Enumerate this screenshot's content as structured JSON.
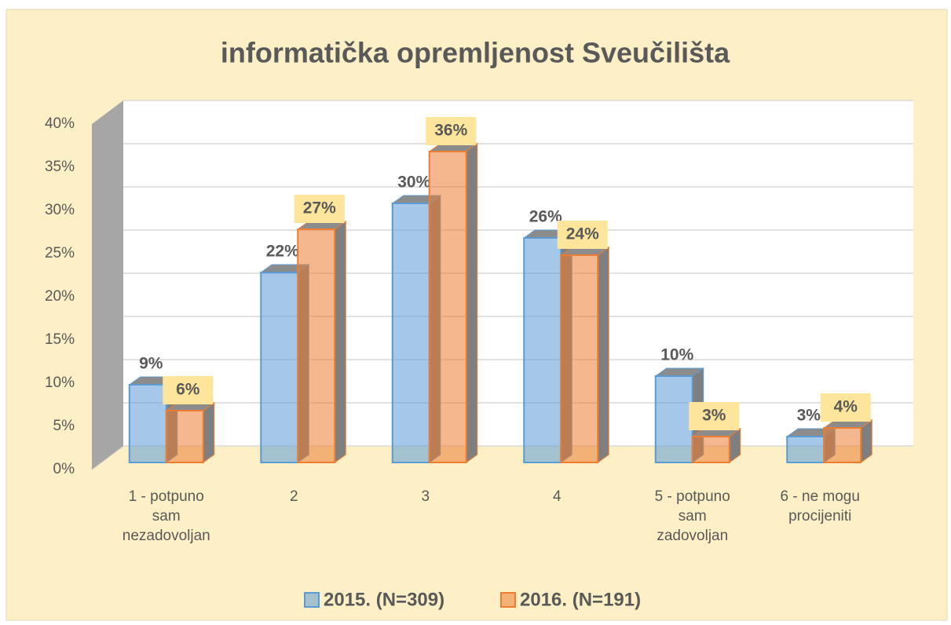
{
  "chart_data": {
    "type": "bar",
    "title": "informatička opremljenost Sveučilišta",
    "categories": [
      "1 - potpuno sam nezadovoljan",
      "2",
      "3",
      "4",
      "5 - potpuno sam zadovoljan",
      "6 - ne mogu procijeniti"
    ],
    "series": [
      {
        "name": "2015. (N=309)",
        "color": "#5b9bd5",
        "values": [
          9,
          22,
          30,
          26,
          10,
          3
        ],
        "value_labels": [
          "9%",
          "22%",
          "30%",
          "26%",
          "10%",
          "3%"
        ]
      },
      {
        "name": "2016. (N=191)",
        "color": "#ed7d31",
        "values": [
          6,
          27,
          36,
          24,
          3,
          4
        ],
        "value_labels": [
          "6%",
          "27%",
          "36%",
          "24%",
          "3%",
          "4%"
        ]
      }
    ],
    "ylim": [
      0,
      40
    ],
    "yticks": [
      {
        "value": 0,
        "label": "0%"
      },
      {
        "value": 5,
        "label": "5%"
      },
      {
        "value": 10,
        "label": "10%"
      },
      {
        "value": 15,
        "label": "15%"
      },
      {
        "value": 20,
        "label": "20%"
      },
      {
        "value": 25,
        "label": "25%"
      },
      {
        "value": 30,
        "label": "30%"
      },
      {
        "value": 35,
        "label": "35%"
      },
      {
        "value": 40,
        "label": "40%"
      }
    ],
    "grid": true,
    "legend": "bottom"
  }
}
